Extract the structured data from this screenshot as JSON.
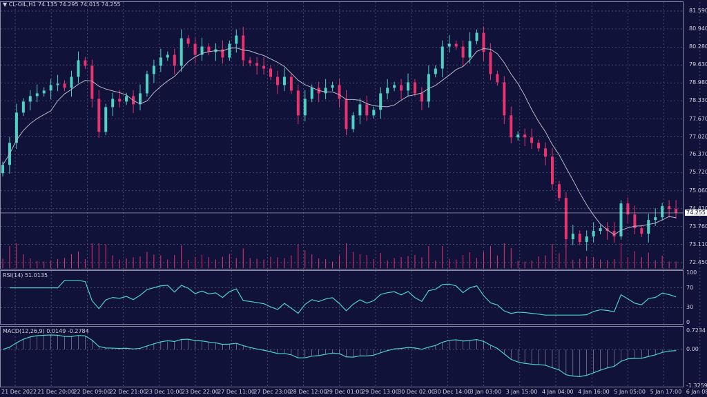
{
  "header": {
    "symbol": "CL-OIL,H1",
    "ohlc_text": "74.135 74.295 74.015 74.255"
  },
  "rsi_label": "RSI(14) 51.0135",
  "macd_label": "MACD(12,26,9) 0.0149 -0.2784",
  "colors": {
    "background": "#10123a",
    "bull": "#4fd1c5",
    "bear": "#e8336e",
    "ma": "#b8b8c8",
    "indicator": "#4fd1c5",
    "grid": "#5a5e80"
  },
  "chart_data": {
    "type": "candlestick",
    "price_ticks": [
      "81.590",
      "80.940",
      "80.280",
      "79.630",
      "78.980",
      "78.330",
      "77.670",
      "77.020",
      "76.370",
      "75.720",
      "75.060",
      "74.410",
      "73.760",
      "73.110",
      "72.450"
    ],
    "ylim": [
      72.45,
      81.59
    ],
    "current_price": "74.255",
    "time_ticks": [
      "21 Dec 2022",
      "21 Dec 20:00",
      "22 Dec 09:00",
      "22 Dec 21:00",
      "23 Dec 10:00",
      "23 Dec 22:00",
      "27 Dec 11:00",
      "27 Dec 23:00",
      "28 Dec 12:00",
      "29 Dec 01:00",
      "29 Dec 13:00",
      "30 Dec 02:00",
      "30 Dec 14:00",
      "3 Jan 03:00",
      "3 Jan 15:00",
      "4 Jan 04:00",
      "4 Jan 16:00",
      "5 Jan 05:00",
      "5 Jan 17:00",
      "6 Jan 08:00"
    ],
    "close": [
      76.0,
      76.8,
      77.9,
      78.3,
      78.5,
      78.6,
      78.7,
      78.9,
      78.95,
      78.8,
      79.2,
      79.8,
      79.6,
      78.4,
      77.2,
      78.1,
      78.4,
      78.3,
      78.5,
      78.2,
      78.6,
      79.3,
      79.6,
      79.9,
      80.0,
      79.6,
      80.6,
      80.4,
      80.0,
      80.3,
      80.1,
      80.2,
      79.9,
      80.4,
      80.7,
      79.8,
      79.7,
      79.6,
      79.5,
      79.2,
      78.9,
      79.2,
      78.7,
      77.8,
      78.4,
      78.8,
      78.6,
      78.8,
      78.9,
      78.4,
      77.3,
      77.8,
      78.2,
      77.8,
      78.0,
      78.6,
      78.8,
      78.9,
      78.7,
      79.0,
      78.6,
      78.3,
      79.3,
      79.5,
      80.3,
      80.4,
      80.3,
      79.9,
      80.5,
      80.8,
      80.1,
      79.3,
      79.0,
      77.8,
      77.0,
      77.1,
      77.0,
      76.8,
      76.6,
      76.3,
      75.3,
      74.8,
      73.3,
      73.5,
      73.2,
      73.4,
      73.6,
      73.7,
      73.6,
      73.4,
      74.6,
      74.2,
      73.7,
      73.5,
      74.0,
      74.1,
      74.5,
      74.4,
      74.255
    ],
    "rsi_ticks": [
      "100",
      "70",
      "30",
      "0"
    ],
    "macd_ticks": [
      "0.7234",
      "0.00",
      "-1.3259"
    ]
  }
}
